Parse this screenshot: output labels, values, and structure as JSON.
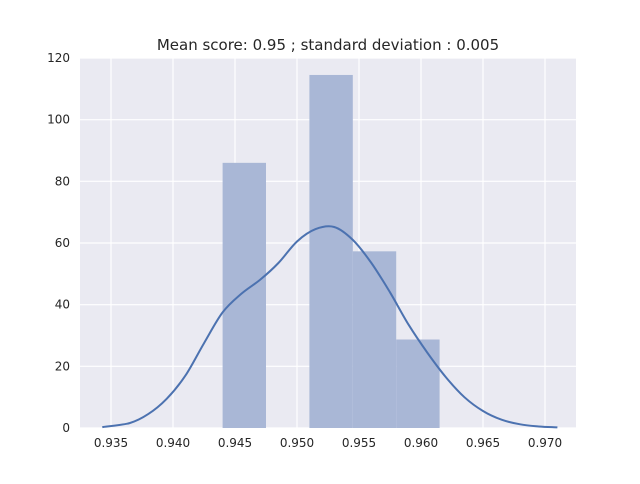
{
  "chart_data": {
    "type": "bar",
    "title": "Mean score: 0.95 ; standard deviation : 0.005",
    "xlabel": "",
    "ylabel": "",
    "xlim": [
      0.9325,
      0.9725
    ],
    "ylim": [
      0,
      120
    ],
    "x_ticks": [
      "0.935",
      "0.940",
      "0.945",
      "0.950",
      "0.955",
      "0.960",
      "0.965",
      "0.970"
    ],
    "y_ticks": [
      "0",
      "20",
      "40",
      "60",
      "80",
      "100",
      "120"
    ],
    "grid": true,
    "histogram": [
      {
        "x0": 0.944,
        "x1": 0.9475,
        "y": 86
      },
      {
        "x0": 0.951,
        "x1": 0.9545,
        "y": 114.5
      },
      {
        "x0": 0.9545,
        "x1": 0.958,
        "y": 57.3
      },
      {
        "x0": 0.958,
        "x1": 0.9615,
        "y": 28.7
      }
    ],
    "kde_line": {
      "x": [
        0.9343,
        0.9365,
        0.938,
        0.9395,
        0.941,
        0.9425,
        0.944,
        0.9455,
        0.947,
        0.9485,
        0.95,
        0.9515,
        0.953,
        0.9545,
        0.956,
        0.9575,
        0.959,
        0.9605,
        0.962,
        0.9635,
        0.965,
        0.9665,
        0.968,
        0.9695,
        0.971
      ],
      "y": [
        0.3,
        1.6,
        4.5,
        9.5,
        17,
        27.5,
        37.5,
        43.5,
        48,
        53.5,
        60.5,
        64.5,
        65.2,
        61,
        53.5,
        44,
        33.5,
        24.5,
        16.5,
        10,
        5.5,
        2.7,
        1.2,
        0.5,
        0.2
      ]
    },
    "colors": {
      "background": "#eaeaf2",
      "grid": "#ffffff",
      "bar": "#a9b7d6",
      "line": "#4c72b0"
    }
  }
}
